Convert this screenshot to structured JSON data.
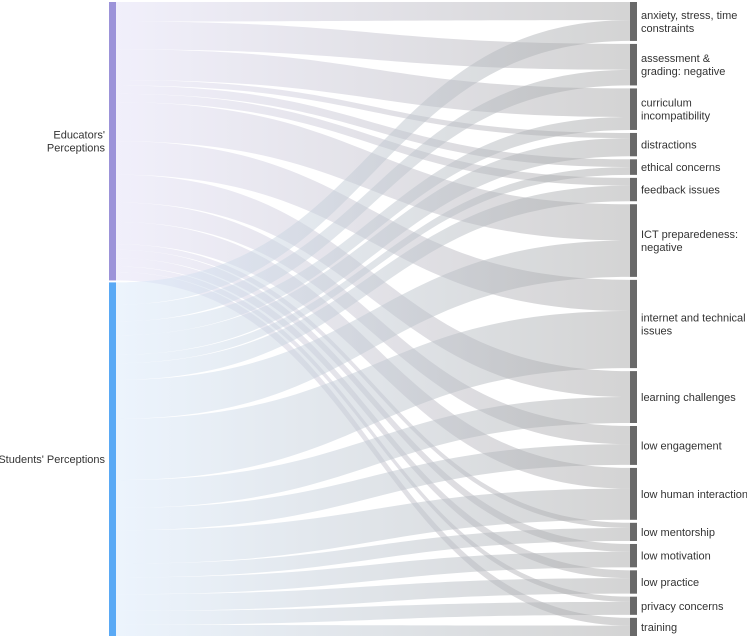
{
  "chart_data": {
    "type": "sankey",
    "title": "",
    "sources": [
      {
        "id": "educators",
        "label": [
          "Educators'",
          "Perceptions"
        ],
        "color": "#9c93d9",
        "fill_color": "#e3e0f7"
      },
      {
        "id": "students",
        "label": [
          "Students' Perceptions"
        ],
        "color": "#5aa9f5",
        "fill_color": "#d9e9fb"
      }
    ],
    "targets": [
      {
        "id": "anxiety",
        "label": [
          "anxiety, stress, time",
          "constraints"
        ]
      },
      {
        "id": "assessment",
        "label": [
          "assessment &",
          "grading: negative"
        ]
      },
      {
        "id": "curriculum",
        "label": [
          "curriculum",
          "incompatibility"
        ]
      },
      {
        "id": "distractions",
        "label": [
          "distractions"
        ]
      },
      {
        "id": "ethical",
        "label": [
          "ethical concerns"
        ]
      },
      {
        "id": "feedback",
        "label": [
          "feedback issues"
        ]
      },
      {
        "id": "ict",
        "label": [
          "ICT preparedeness:",
          "negative"
        ]
      },
      {
        "id": "internet",
        "label": [
          "internet and technical",
          "issues"
        ]
      },
      {
        "id": "learning",
        "label": [
          "learning challenges"
        ]
      },
      {
        "id": "engagement",
        "label": [
          "low engagement"
        ]
      },
      {
        "id": "human",
        "label": [
          "low human interaction"
        ]
      },
      {
        "id": "mentorship",
        "label": [
          "low mentorship"
        ]
      },
      {
        "id": "motivation",
        "label": [
          "low motivation"
        ]
      },
      {
        "id": "practice",
        "label": [
          "low practice"
        ]
      },
      {
        "id": "privacy",
        "label": [
          "privacy concerns"
        ]
      },
      {
        "id": "training",
        "label": [
          "training"
        ]
      }
    ],
    "links": [
      {
        "source": "educators",
        "target": "anxiety",
        "value": 3.5
      },
      {
        "source": "educators",
        "target": "assessment",
        "value": 5
      },
      {
        "source": "educators",
        "target": "curriculum",
        "value": 5.5
      },
      {
        "source": "educators",
        "target": "distractions",
        "value": 1
      },
      {
        "source": "educators",
        "target": "ethical",
        "value": 1.5
      },
      {
        "source": "educators",
        "target": "feedback",
        "value": 1.5
      },
      {
        "source": "educators",
        "target": "ict",
        "value": 7
      },
      {
        "source": "educators",
        "target": "internet",
        "value": 6
      },
      {
        "source": "educators",
        "target": "learning",
        "value": 5
      },
      {
        "source": "educators",
        "target": "engagement",
        "value": 3.5
      },
      {
        "source": "educators",
        "target": "human",
        "value": 4
      },
      {
        "source": "educators",
        "target": "mentorship",
        "value": 1
      },
      {
        "source": "educators",
        "target": "motivation",
        "value": 1.5
      },
      {
        "source": "educators",
        "target": "practice",
        "value": 1.5
      },
      {
        "source": "educators",
        "target": "privacy",
        "value": 1
      },
      {
        "source": "educators",
        "target": "training",
        "value": 1.5
      },
      {
        "source": "students",
        "target": "anxiety",
        "value": 4
      },
      {
        "source": "students",
        "target": "assessment",
        "value": 3
      },
      {
        "source": "students",
        "target": "curriculum",
        "value": 2.5
      },
      {
        "source": "students",
        "target": "distractions",
        "value": 3.5
      },
      {
        "source": "students",
        "target": "ethical",
        "value": 1.5
      },
      {
        "source": "students",
        "target": "feedback",
        "value": 3
      },
      {
        "source": "students",
        "target": "ict",
        "value": 7
      },
      {
        "source": "students",
        "target": "internet",
        "value": 11
      },
      {
        "source": "students",
        "target": "learning",
        "value": 5
      },
      {
        "source": "students",
        "target": "engagement",
        "value": 4
      },
      {
        "source": "students",
        "target": "human",
        "value": 6
      },
      {
        "source": "students",
        "target": "mentorship",
        "value": 2.5
      },
      {
        "source": "students",
        "target": "motivation",
        "value": 3
      },
      {
        "source": "students",
        "target": "practice",
        "value": 3
      },
      {
        "source": "students",
        "target": "privacy",
        "value": 2.5
      },
      {
        "source": "students",
        "target": "training",
        "value": 2
      }
    ],
    "flow_color": "#a9a9a9",
    "target_node_color": "#696969",
    "legend": "none",
    "grid": false
  }
}
